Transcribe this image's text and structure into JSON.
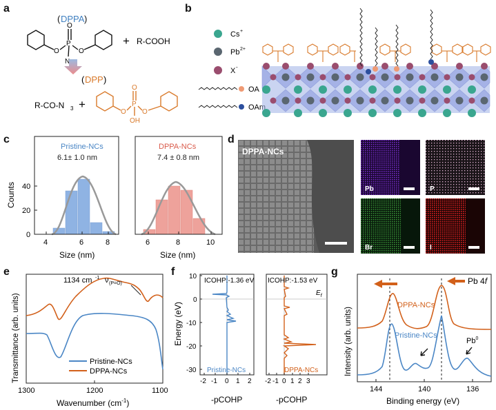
{
  "panel_letters": [
    "a",
    "b",
    "c",
    "d",
    "e",
    "f",
    "g"
  ],
  "panel_a": {
    "dppa_abbr": "DPPA",
    "plus_sign": "+",
    "acid": "R-COOH",
    "azide_product": "R-CO-N",
    "azide_sub": "3",
    "dpp_abbr": "DPP",
    "dppa_labels": {
      "P": "P",
      "O": "O",
      "N3": "N",
      "N3_sub": "3"
    },
    "dpp_labels": {
      "P": "P",
      "O": "O",
      "OH": "OH"
    },
    "colors": {
      "dppa": "#3f7fc0",
      "dpp": "#d97a2b",
      "arrow_top": "#8fb0d8",
      "arrow_bottom": "#e88a8a"
    }
  },
  "panel_b": {
    "legend": [
      {
        "label": "Cs",
        "sup": "+",
        "color": "#3aa68f"
      },
      {
        "label": "Pb",
        "sup": "2+",
        "color": "#5a6670"
      },
      {
        "label": "X",
        "sup": "-",
        "color": "#9a4d6e"
      },
      {
        "label": "OA",
        "sup": "",
        "color": "#ef9a74"
      },
      {
        "label": "OAm",
        "sup": "",
        "color": "#2c4f9e"
      }
    ],
    "octahedron_color": "#7f8fd6",
    "dpp_color": "#d97a2b"
  },
  "panel_c": {
    "left": {
      "title": "Pristine-NCs",
      "value": "6.1± 1.0 nm",
      "color": "#7fa7dc",
      "ylabel": "Counts",
      "xlabel": "Size (nm)",
      "xticks": [
        "4",
        "6",
        "8"
      ],
      "yticks": [
        "0",
        "20",
        "40"
      ]
    },
    "right": {
      "title": "DPPA-NCs",
      "value": "7.4 ± 0.8 nm",
      "color": "#e88a82",
      "xlabel": "Size (nm)",
      "xticks": [
        "6",
        "8",
        "10"
      ]
    }
  },
  "panel_d": {
    "title": "DPPA-NCs",
    "maps": [
      {
        "label": "Pb",
        "color": "#7a2fd0"
      },
      {
        "label": "P",
        "color": "#e6b8d8"
      },
      {
        "label": "Br",
        "color": "#3d9a3a"
      },
      {
        "label": "I",
        "color": "#e02020"
      }
    ]
  },
  "panel_e": {
    "annotation": "1134 cm",
    "annotation_sup": "-1",
    "annotation_nu": "ν",
    "annotation_sub": "(P=O)",
    "legend": [
      "Pristine-NCs",
      "DPPA-NCs"
    ],
    "colors": [
      "#4a86c5",
      "#d2601a"
    ],
    "ylabel": "Transmittance (arb. units)",
    "xlabel": "Wavenumber (cm",
    "xlabel_sup": "-1",
    "xlabel_end": ")",
    "xticks": [
      "1300",
      "1200",
      "1100"
    ]
  },
  "panel_f": {
    "left_icohp": "ICOHP:-1.36 eV",
    "right_icohp": "ICOHP:-1.53 eV",
    "ef_label": "E",
    "ef_sub": "f",
    "left_name": "Pristine-NCs",
    "right_name": "DPPA-NCs",
    "ylabel": "Energy (eV)",
    "xlabel": "-pCOHP",
    "yticks": [
      "10",
      "0",
      "-10",
      "-20",
      "-30"
    ],
    "left_xticks": [
      "-2",
      "-1",
      "0",
      "1",
      "2"
    ],
    "right_xticks": [
      "-2",
      "-1",
      "0",
      "1",
      "2",
      "3"
    ],
    "colors": [
      "#4a86c5",
      "#d2601a"
    ]
  },
  "panel_g": {
    "pb_label": "Pb 4",
    "pb_label_italic": "f",
    "dppa_name": "DPPA-NCs",
    "pristine_name": "Pristine-NCs",
    "pb0": "Pb",
    "pb0_sup": "0",
    "ylabel": "Intensity (arb. units)",
    "xlabel": "Binding energy (eV)",
    "xticks": [
      "144",
      "140",
      "136"
    ],
    "colors": [
      "#4a86c5",
      "#d2601a"
    ]
  }
}
